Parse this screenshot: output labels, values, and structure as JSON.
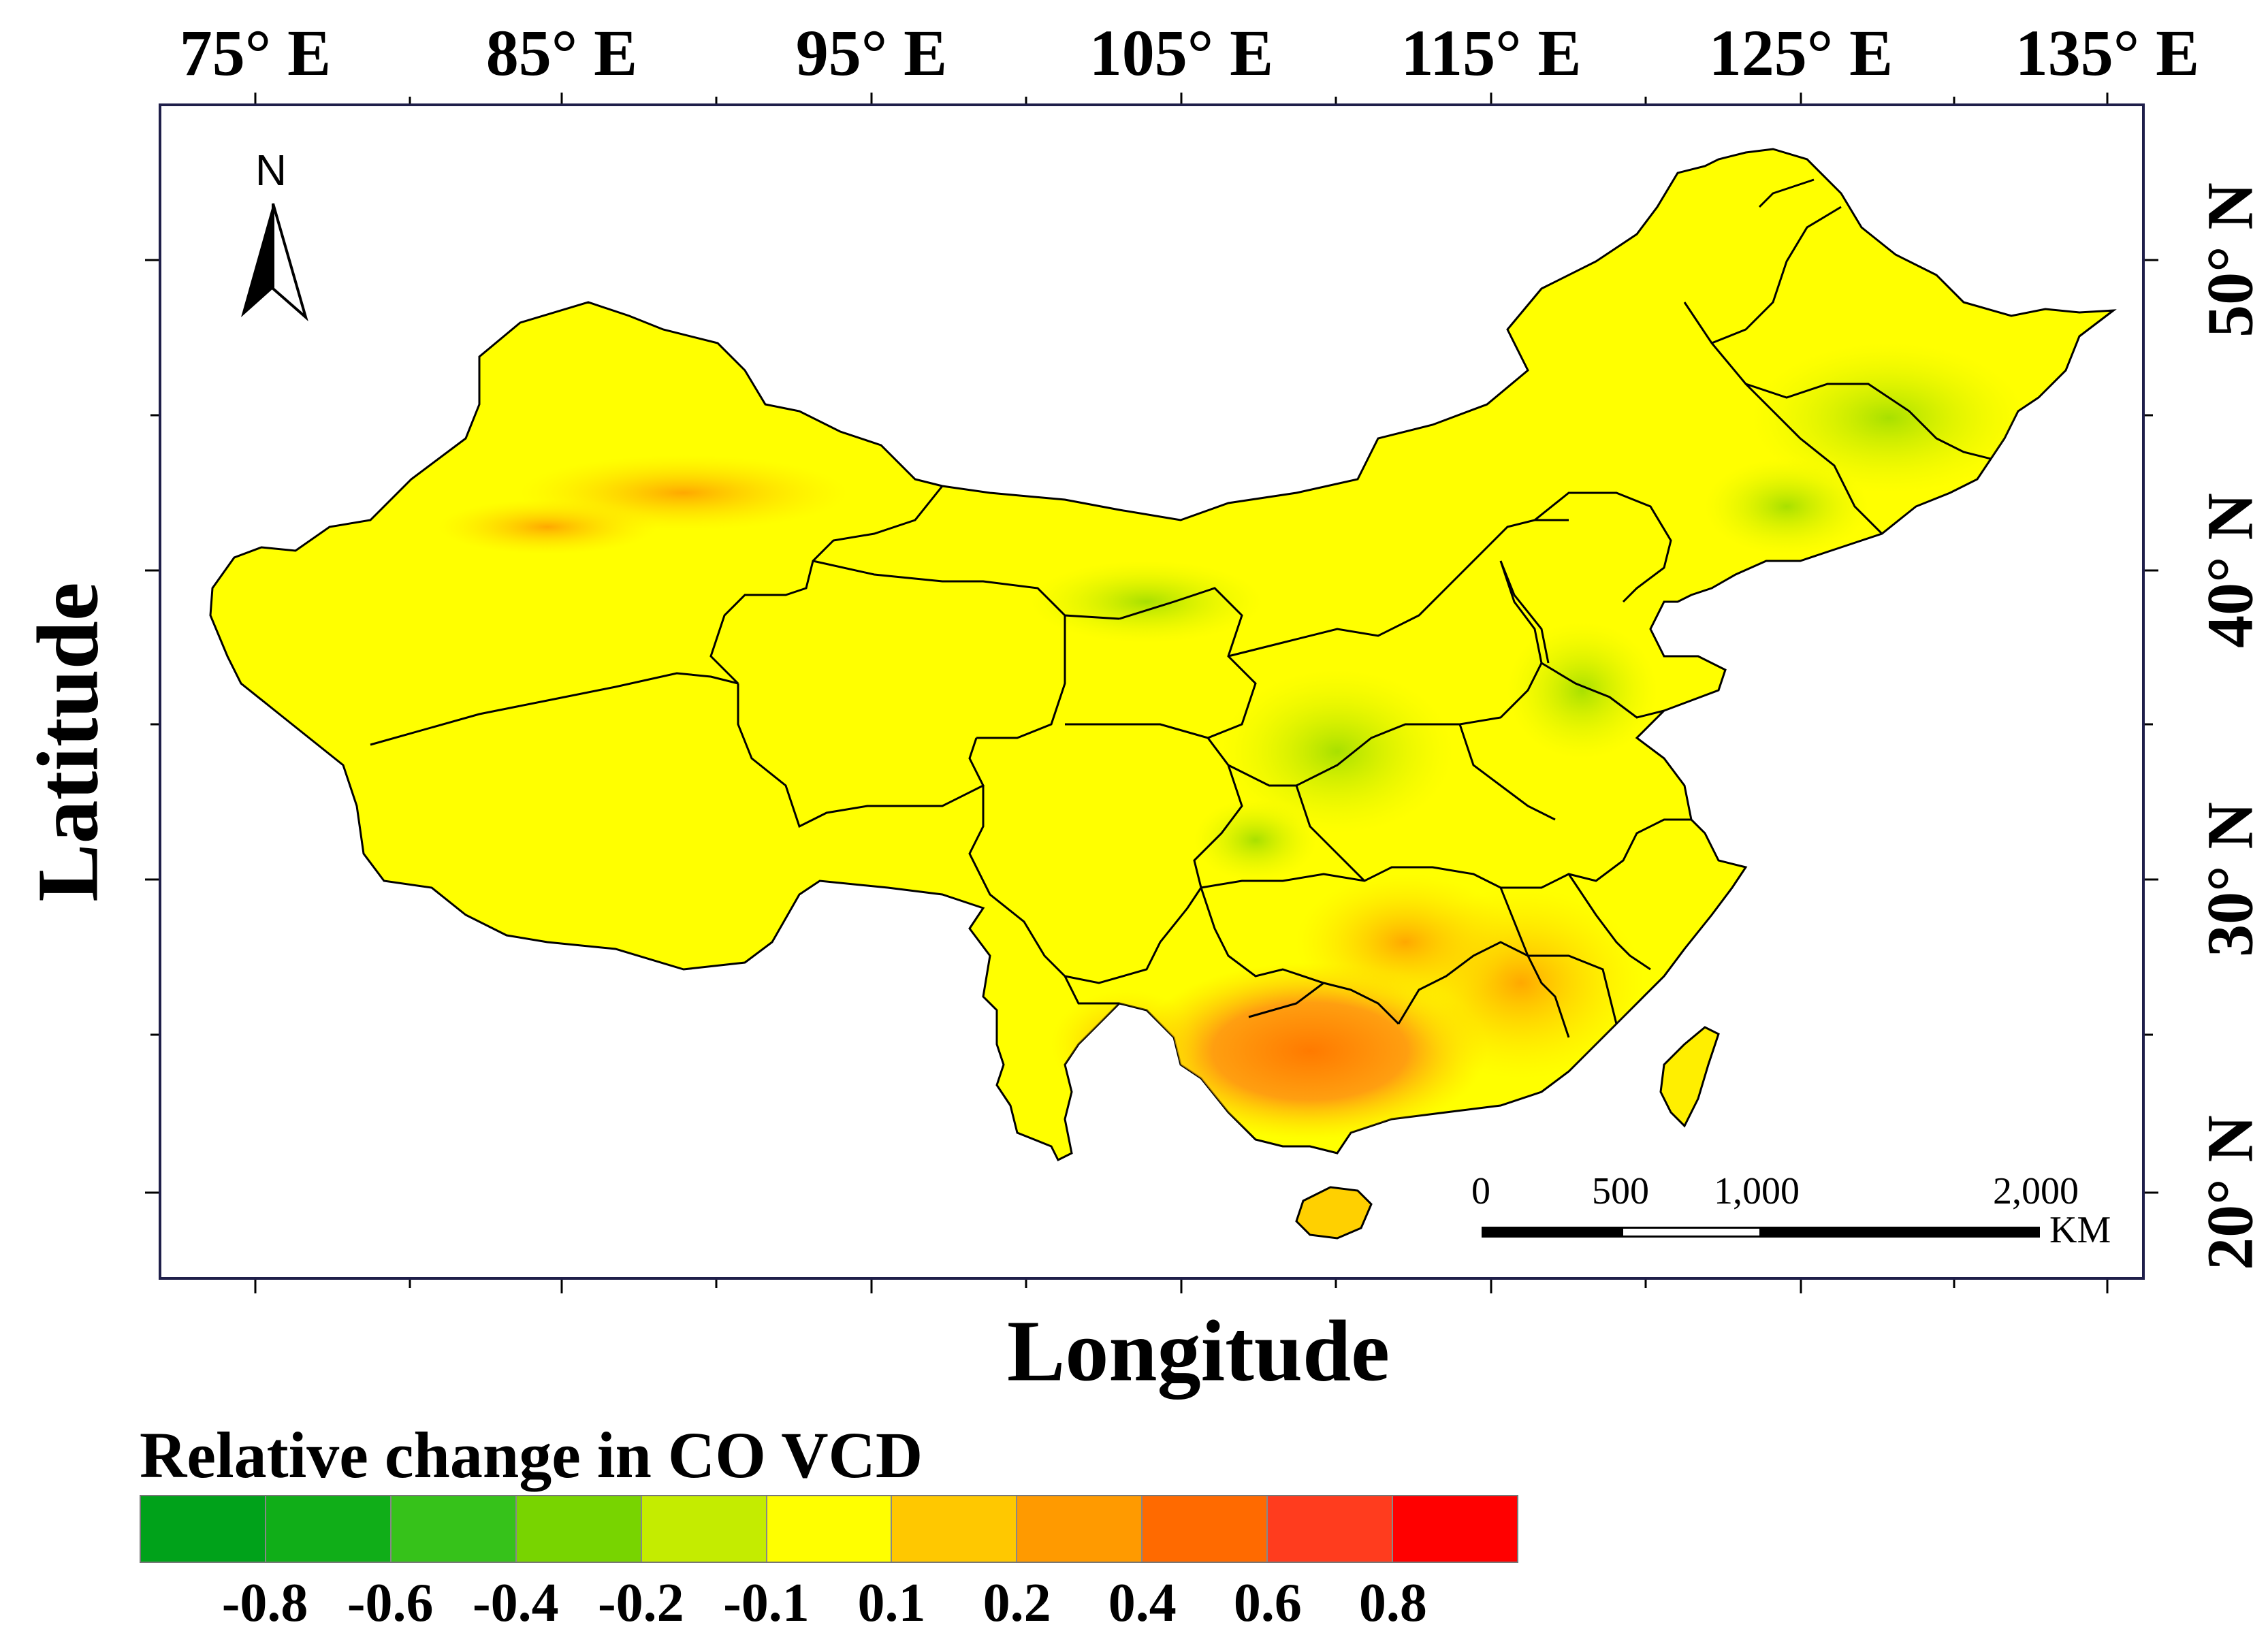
{
  "map": {
    "longitude_labels": [
      "75° E",
      "85° E",
      "95° E",
      "105° E",
      "115° E",
      "125° E",
      "135° E"
    ],
    "latitude_labels": [
      "50° N",
      "40° N",
      "30° N",
      "20° N"
    ],
    "y_axis_title": "Latitude",
    "x_axis_title": "Longitude",
    "north_arrow_label": "N",
    "scale_bar": {
      "labels": [
        "0",
        "500",
        "1,000",
        "2,000"
      ],
      "unit": "KM"
    }
  },
  "legend": {
    "title": "Relative change in CO VCD",
    "colors": [
      "#00a21a",
      "#10ae18",
      "#36c21a",
      "#78d400",
      "#c4ec00",
      "#ffff00",
      "#ffc800",
      "#ff9a00",
      "#ff6a00",
      "#ff3c1e",
      "#ff0000"
    ],
    "tick_labels": [
      "-0.8",
      "-0.6",
      "-0.4",
      "-0.2",
      "-0.1",
      "0.1",
      "0.2",
      "0.4",
      "0.6",
      "0.8"
    ]
  },
  "colors": {
    "land_fill": "#ffff00",
    "border": "#000000",
    "frame": "#1f1f4a"
  }
}
